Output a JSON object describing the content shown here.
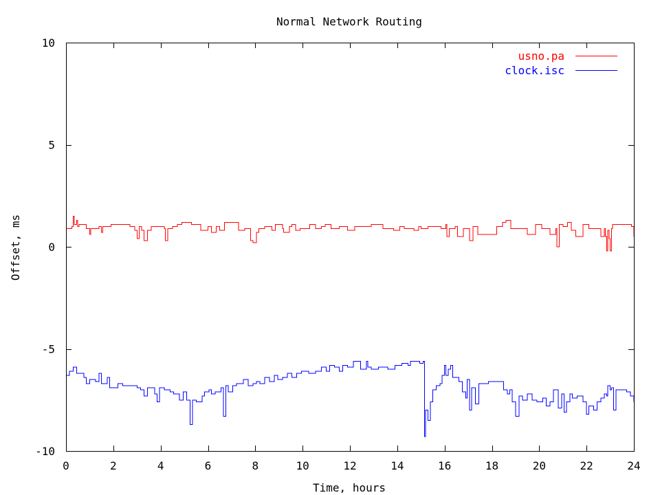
{
  "chart_data": {
    "type": "line",
    "title": "Normal Network Routing",
    "xlabel": "Time, hours",
    "ylabel": "Offset, ms",
    "xlim": [
      0,
      24
    ],
    "ylim": [
      -10,
      10
    ],
    "xticks": [
      0,
      2,
      4,
      6,
      8,
      10,
      12,
      14,
      16,
      18,
      20,
      22,
      24
    ],
    "yticks": [
      -10,
      -5,
      0,
      5,
      10
    ],
    "grid": false,
    "legend_position": "top-right",
    "series": [
      {
        "name": "usno.pa",
        "color": "#ff0000",
        "x": [
          0,
          0.25,
          0.3,
          0.35,
          0.45,
          0.5,
          0.55,
          0.85,
          1.0,
          1.05,
          1.4,
          1.5,
          1.55,
          1.9,
          2.4,
          2.7,
          2.9,
          3.0,
          3.1,
          3.2,
          3.3,
          3.45,
          3.6,
          3.95,
          4.15,
          4.2,
          4.3,
          4.5,
          4.7,
          4.9,
          5.3,
          5.7,
          6.0,
          6.15,
          6.35,
          6.5,
          6.7,
          7.0,
          7.3,
          7.55,
          7.8,
          7.9,
          8.05,
          8.15,
          8.4,
          8.7,
          8.85,
          9.15,
          9.2,
          9.45,
          9.55,
          9.7,
          9.9,
          10.3,
          10.55,
          10.8,
          10.95,
          11.2,
          11.55,
          11.9,
          12.2,
          12.5,
          12.9,
          13.4,
          13.85,
          14.1,
          14.3,
          14.7,
          14.9,
          15.0,
          15.3,
          15.55,
          15.85,
          16.05,
          16.1,
          16.2,
          16.45,
          16.55,
          16.8,
          17.05,
          17.2,
          17.4,
          17.8,
          18.2,
          18.45,
          18.6,
          18.8,
          19.15,
          19.5,
          19.85,
          20.1,
          20.3,
          20.45,
          20.6,
          20.7,
          20.75,
          20.85,
          21.0,
          21.2,
          21.35,
          21.55,
          21.85,
          22.1,
          22.4,
          22.6,
          22.75,
          22.8,
          22.85,
          22.9,
          22.95,
          23.0,
          23.05,
          23.1,
          23.5,
          23.9,
          24.0
        ],
        "y": [
          0.9,
          1.0,
          1.5,
          1.1,
          1.3,
          1.0,
          1.1,
          0.9,
          0.6,
          0.9,
          1.0,
          0.7,
          1.0,
          1.1,
          1.1,
          1.0,
          0.8,
          0.4,
          1.0,
          0.8,
          0.3,
          0.8,
          1.0,
          1.0,
          0.9,
          0.3,
          0.9,
          1.0,
          1.1,
          1.2,
          1.1,
          0.8,
          1.0,
          0.7,
          1.0,
          0.8,
          1.2,
          1.2,
          0.8,
          0.9,
          0.3,
          0.2,
          0.7,
          0.9,
          1.0,
          0.8,
          1.1,
          0.9,
          0.7,
          1.0,
          1.1,
          0.8,
          0.9,
          1.1,
          0.9,
          1.0,
          1.1,
          0.9,
          1.0,
          0.8,
          1.0,
          1.0,
          1.1,
          0.9,
          0.8,
          1.0,
          0.9,
          0.8,
          1.0,
          0.9,
          1.0,
          1.0,
          0.9,
          1.1,
          0.5,
          0.9,
          1.0,
          0.5,
          0.9,
          0.3,
          1.0,
          0.6,
          0.6,
          1.0,
          1.2,
          1.3,
          0.9,
          0.9,
          0.6,
          1.1,
          0.9,
          0.9,
          0.6,
          0.6,
          0.9,
          0.0,
          1.1,
          1.0,
          1.2,
          0.8,
          0.5,
          1.1,
          0.9,
          0.9,
          0.5,
          0.9,
          0.5,
          -0.2,
          0.8,
          0.4,
          -0.2,
          0.9,
          1.1,
          1.1,
          1.0,
          0.5
        ]
      },
      {
        "name": "clock.isc",
        "color": "#0000ff",
        "x": [
          0,
          0.15,
          0.3,
          0.45,
          0.6,
          0.75,
          0.85,
          1.0,
          1.25,
          1.4,
          1.5,
          1.75,
          1.85,
          2.2,
          2.4,
          2.7,
          3.0,
          3.15,
          3.3,
          3.45,
          3.75,
          3.85,
          3.95,
          4.15,
          4.4,
          4.55,
          4.7,
          4.8,
          4.95,
          5.1,
          5.25,
          5.35,
          5.5,
          5.75,
          5.85,
          6.05,
          6.15,
          6.3,
          6.55,
          6.65,
          6.75,
          6.85,
          7.05,
          7.2,
          7.5,
          7.7,
          7.9,
          8.05,
          8.2,
          8.4,
          8.6,
          8.8,
          8.95,
          9.15,
          9.35,
          9.55,
          9.75,
          9.95,
          10.25,
          10.55,
          10.8,
          11.0,
          11.15,
          11.35,
          11.55,
          11.7,
          11.9,
          12.15,
          12.45,
          12.7,
          12.75,
          12.9,
          13.2,
          13.6,
          13.9,
          14.2,
          14.45,
          14.55,
          14.75,
          14.95,
          15.1,
          15.15,
          15.2,
          15.3,
          15.4,
          15.5,
          15.65,
          15.8,
          15.9,
          16.0,
          16.05,
          16.15,
          16.25,
          16.35,
          16.6,
          16.75,
          16.9,
          16.95,
          17.05,
          17.15,
          17.3,
          17.45,
          17.55,
          17.85,
          18.05,
          18.3,
          18.5,
          18.65,
          18.75,
          18.85,
          19.0,
          19.15,
          19.3,
          19.5,
          19.7,
          19.9,
          20.15,
          20.3,
          20.45,
          20.6,
          20.8,
          20.95,
          21.05,
          21.15,
          21.3,
          21.4,
          21.6,
          21.85,
          22.0,
          22.1,
          22.3,
          22.45,
          22.6,
          22.75,
          22.85,
          22.9,
          23.0,
          23.05,
          23.15,
          23.25,
          23.5,
          23.7,
          23.85,
          24.0
        ],
        "y": [
          -6.3,
          -6.1,
          -5.9,
          -6.2,
          -6.2,
          -6.4,
          -6.7,
          -6.5,
          -6.6,
          -6.2,
          -6.7,
          -6.4,
          -6.9,
          -6.7,
          -6.8,
          -6.8,
          -6.9,
          -7.0,
          -7.3,
          -6.9,
          -7.2,
          -7.6,
          -6.9,
          -7.0,
          -7.1,
          -7.2,
          -7.2,
          -7.5,
          -7.1,
          -7.5,
          -8.7,
          -7.5,
          -7.6,
          -7.3,
          -7.1,
          -7.0,
          -7.2,
          -7.1,
          -6.9,
          -8.3,
          -6.8,
          -7.1,
          -6.8,
          -6.7,
          -6.5,
          -6.8,
          -6.7,
          -6.6,
          -6.7,
          -6.4,
          -6.6,
          -6.3,
          -6.5,
          -6.4,
          -6.2,
          -6.4,
          -6.2,
          -6.1,
          -6.2,
          -6.1,
          -5.9,
          -6.1,
          -5.8,
          -5.9,
          -6.1,
          -5.8,
          -5.9,
          -5.6,
          -6.0,
          -5.6,
          -5.9,
          -6.0,
          -5.9,
          -6.0,
          -5.8,
          -5.7,
          -5.8,
          -5.6,
          -5.6,
          -5.7,
          -5.6,
          -9.3,
          -8.0,
          -8.5,
          -7.6,
          -7.0,
          -6.8,
          -6.7,
          -6.3,
          -5.8,
          -6.3,
          -6.0,
          -5.8,
          -6.4,
          -6.6,
          -7.1,
          -7.4,
          -6.5,
          -8.0,
          -6.9,
          -7.7,
          -6.7,
          -6.7,
          -6.6,
          -6.6,
          -6.6,
          -7.0,
          -7.2,
          -7.0,
          -7.6,
          -8.3,
          -7.3,
          -7.5,
          -7.2,
          -7.5,
          -7.6,
          -7.4,
          -7.8,
          -7.6,
          -7.0,
          -7.9,
          -7.2,
          -8.1,
          -7.6,
          -7.2,
          -7.4,
          -7.3,
          -7.6,
          -8.2,
          -7.8,
          -8.0,
          -7.6,
          -7.4,
          -7.2,
          -7.3,
          -6.8,
          -7.0,
          -6.9,
          -8.0,
          -7.0,
          -7.0,
          -7.1,
          -7.3,
          -7.6
        ]
      }
    ]
  }
}
